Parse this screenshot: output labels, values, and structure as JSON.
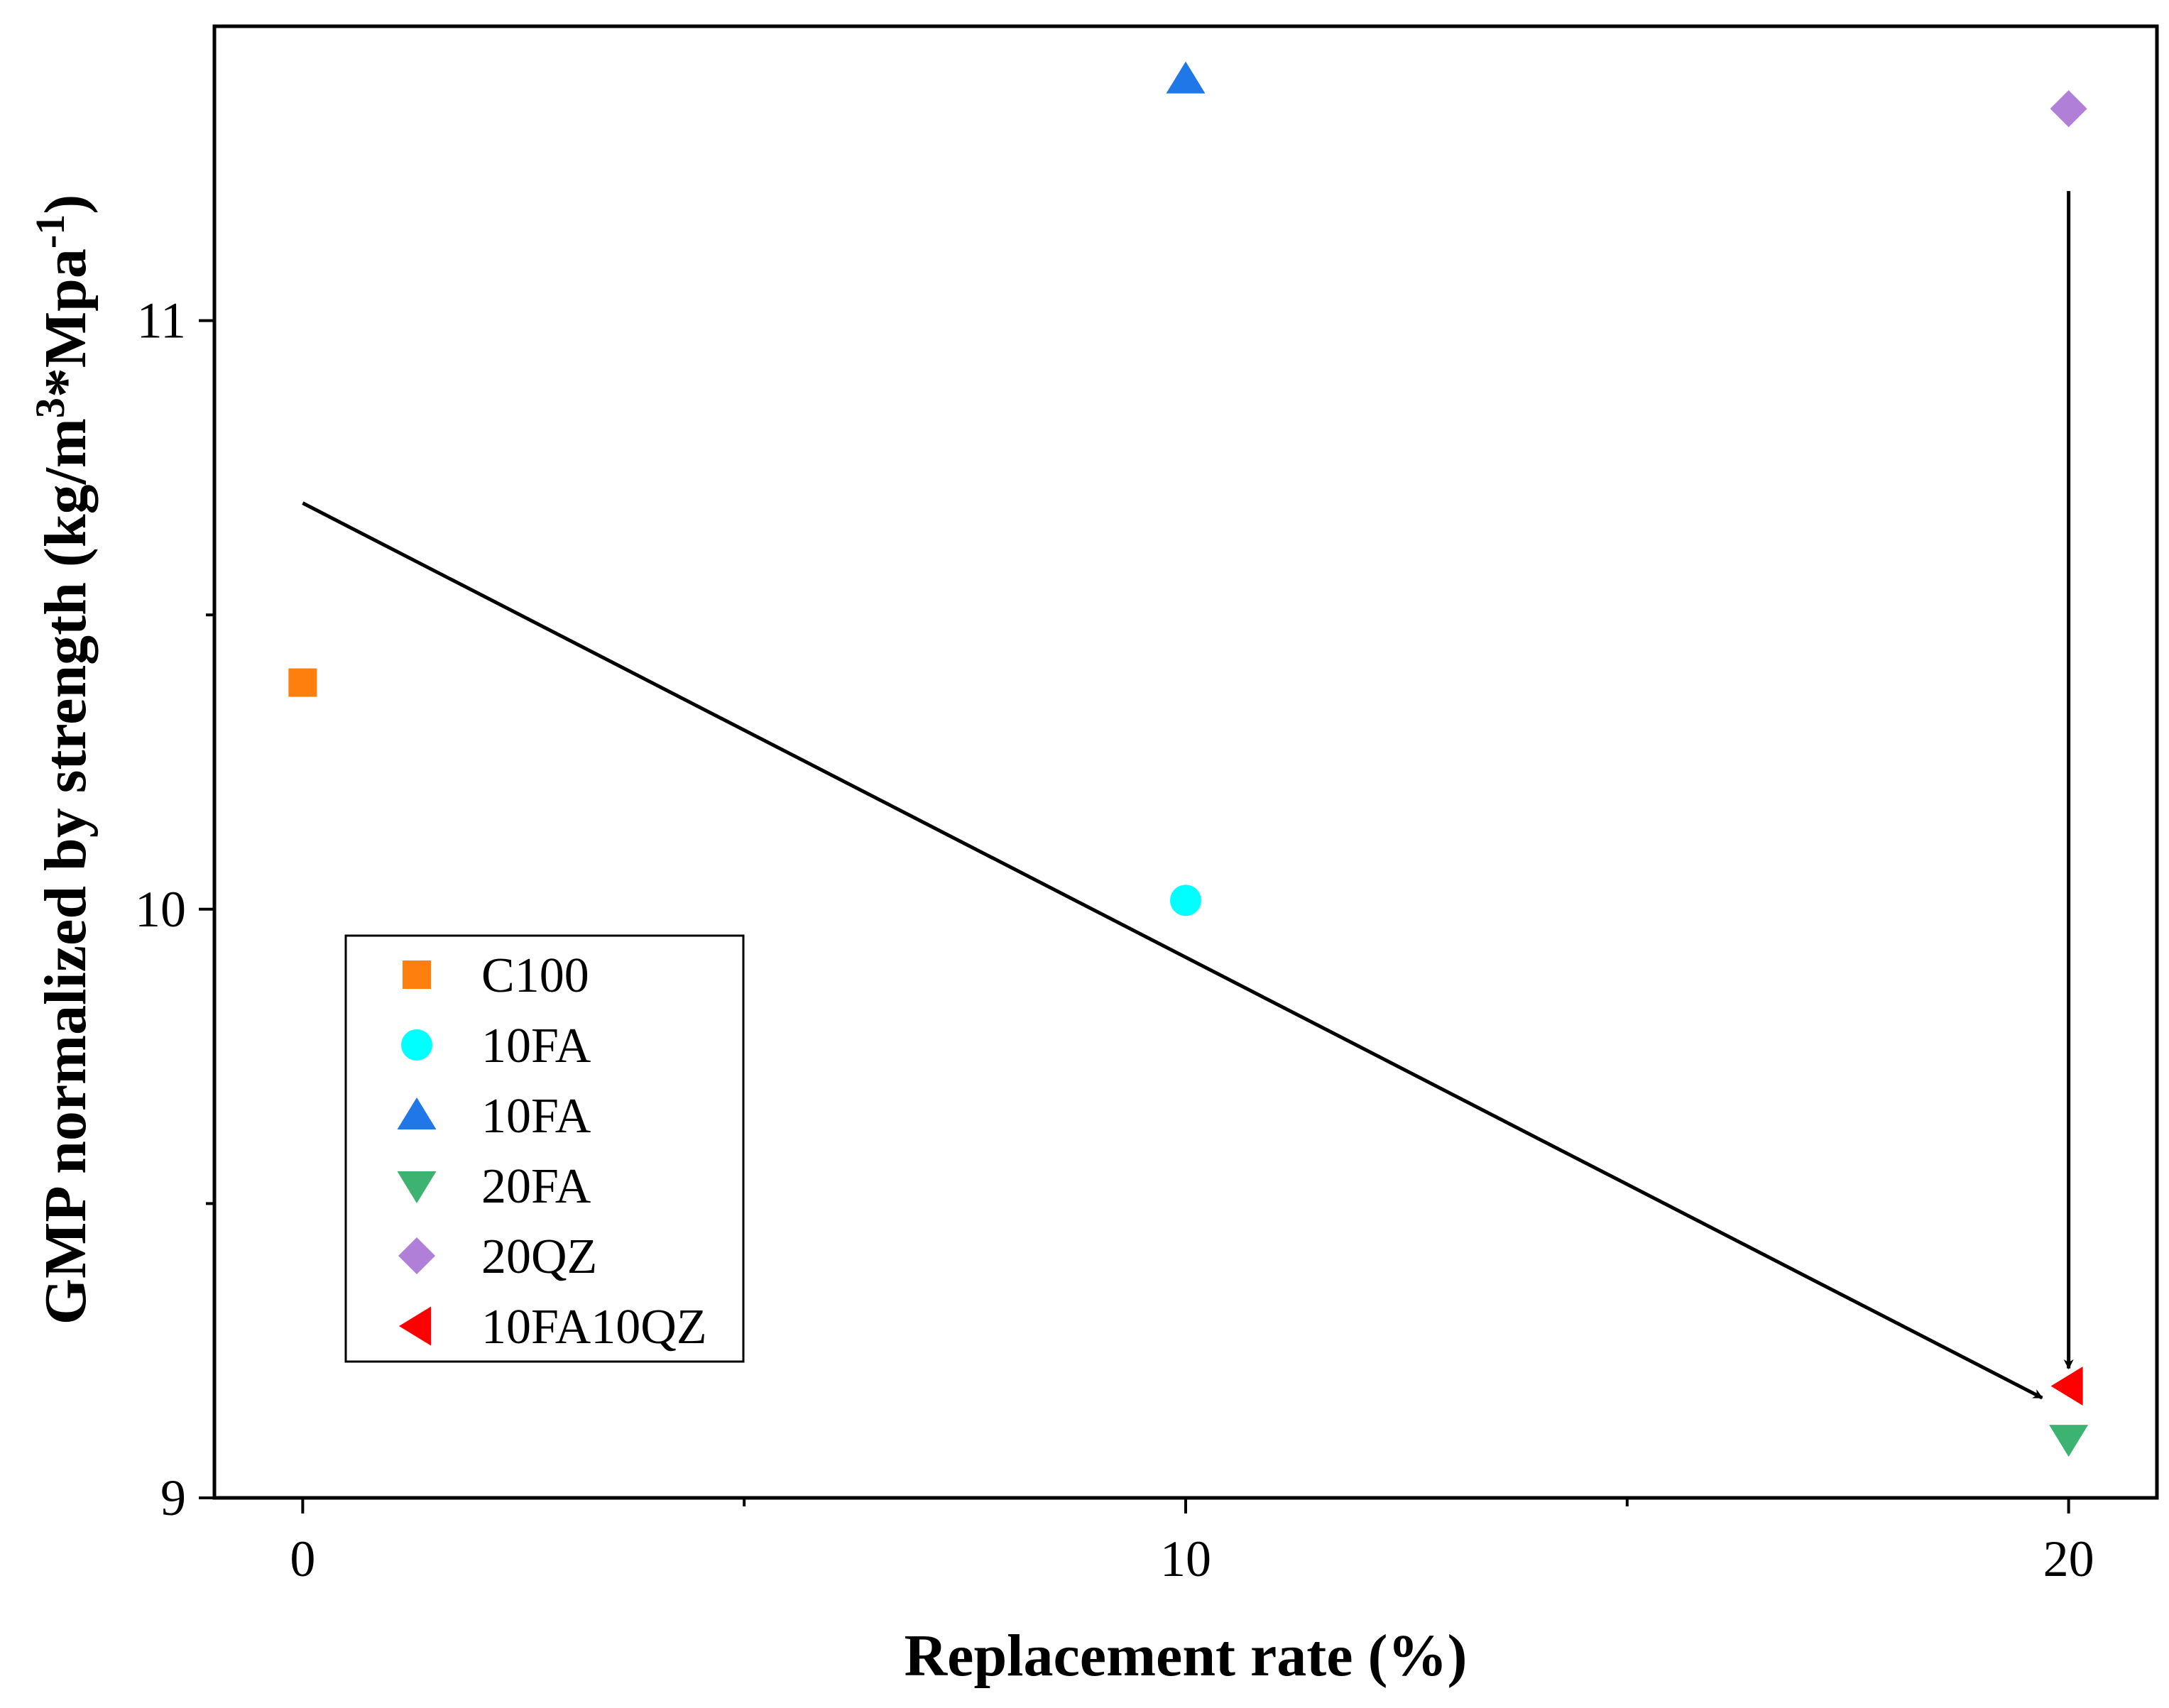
{
  "chart_data": {
    "type": "scatter",
    "title": "",
    "xlabel": "Replacement rate (%)",
    "ylabel_parts": {
      "prefix": "GMP normalized by strength (kg/m",
      "sup1": "3",
      "middle": "*Mpa",
      "sup2": "-1",
      "suffix": ")"
    },
    "xlim": [
      -1,
      21
    ],
    "ylim": [
      9,
      11.5
    ],
    "xticks": [
      0,
      10,
      20
    ],
    "xminor": [
      5,
      15
    ],
    "yticks": [
      9,
      10,
      11
    ],
    "yminor": [
      9.5,
      10.5
    ],
    "legend_position": "lower-left",
    "series": [
      {
        "name": "C100",
        "marker": "square",
        "color": "#ff7f0e",
        "points": [
          {
            "x": 0,
            "y": 10.385
          }
        ]
      },
      {
        "name": "10FA",
        "marker": "circle",
        "color": "#00ffff",
        "points": [
          {
            "x": 10,
            "y": 10.015
          }
        ]
      },
      {
        "name": "10FA",
        "marker": "triangle-up",
        "color": "#1f77e8",
        "points": [
          {
            "x": 10,
            "y": 11.41
          }
        ]
      },
      {
        "name": "20FA",
        "marker": "triangle-down",
        "color": "#3cb371",
        "points": [
          {
            "x": 20,
            "y": 9.1
          }
        ]
      },
      {
        "name": "20QZ",
        "marker": "diamond",
        "color": "#b07fd8",
        "points": [
          {
            "x": 20,
            "y": 11.36
          }
        ]
      },
      {
        "name": "10FA10QZ",
        "marker": "triangle-left",
        "color": "#ff0000",
        "points": [
          {
            "x": 20,
            "y": 9.19
          }
        ]
      }
    ],
    "annotations": [
      {
        "type": "arrow",
        "from": {
          "x": 0,
          "y": 10.69
        },
        "to": {
          "x": 19.7,
          "y": 9.17
        }
      },
      {
        "type": "arrow",
        "from": {
          "x": 20,
          "y": 11.22
        },
        "to": {
          "x": 20,
          "y": 9.22
        }
      }
    ]
  }
}
